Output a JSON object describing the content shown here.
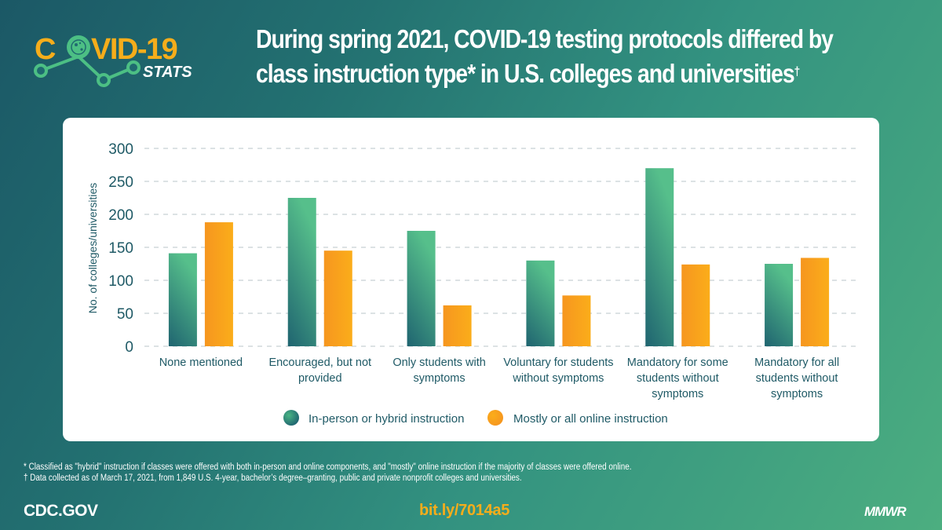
{
  "logo": {
    "word": "COVID-19",
    "sub": "STATS",
    "icon": "virus-icon",
    "primary_color": "#f5ad1b",
    "line_color": "#4cbf84"
  },
  "title": {
    "line1": "During spring 2021, COVID-19 testing protocols differed by",
    "line2": "class instruction type* in U.S. colleges and universities",
    "dagger": "†"
  },
  "colors": {
    "series1_top": "#56bf8b",
    "series1_bottom": "#1f6470",
    "series2_top": "#fbad1a",
    "series2_bottom": "#f6961f",
    "text": "#1f5a66",
    "grid": "#b9c6c8"
  },
  "chart_data": {
    "type": "bar",
    "title": "During spring 2021, COVID-19 testing protocols differed by class instruction type* in U.S. colleges and universities†",
    "xlabel": "",
    "ylabel": "No. of colleges/universities",
    "ylim": [
      0,
      300
    ],
    "yticks": [
      0,
      50,
      100,
      150,
      200,
      250,
      300
    ],
    "grid": true,
    "legend_position": "bottom",
    "categories": [
      [
        "None mentioned"
      ],
      [
        "Encouraged, but not",
        "provided"
      ],
      [
        "Only students with",
        "symptoms"
      ],
      [
        "Voluntary for students",
        "without symptoms"
      ],
      [
        "Mandatory for some",
        "students without",
        "symptoms"
      ],
      [
        "Mandatory for all",
        "students without",
        "symptoms"
      ]
    ],
    "series": [
      {
        "name": "In-person or hybrid instruction",
        "values": [
          141,
          225,
          175,
          130,
          270,
          125
        ]
      },
      {
        "name": "Mostly or all online instruction",
        "values": [
          188,
          145,
          62,
          77,
          124,
          134
        ]
      }
    ]
  },
  "footnotes": [
    "* Classified as \"hybrid\" instruction if classes were offered with both in-person and online components, and \"mostly\" online instruction if the majority of classes were offered online.",
    "† Data collected as of March 17, 2021, from 1,849 U.S. 4-year, bachelor’s degree–granting, public and private nonprofit colleges and universities."
  ],
  "footer": {
    "left": "CDC.GOV",
    "center": "bit.ly/7014a5",
    "right": "MMWR"
  }
}
